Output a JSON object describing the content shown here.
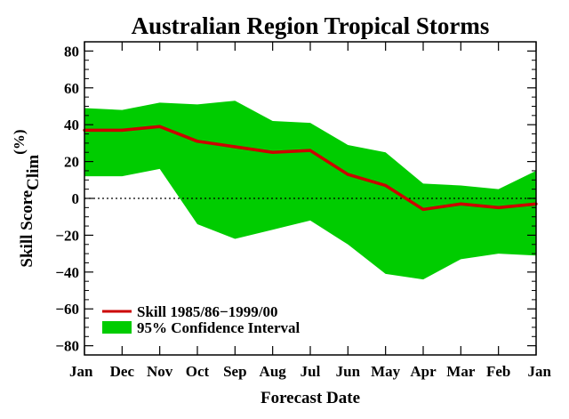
{
  "chart_data": {
    "type": "area",
    "title": "Australian Region Tropical Storms",
    "xlabel": "Forecast Date",
    "ylabel_main": "Skill Score",
    "ylabel_sub": "Clim",
    "ylabel_unit": "(%)",
    "categories": [
      "Jan",
      "Dec",
      "Nov",
      "Oct",
      "Sep",
      "Aug",
      "Jul",
      "Jun",
      "May",
      "Apr",
      "Mar",
      "Feb",
      "Jan"
    ],
    "yticks": [
      80,
      60,
      40,
      20,
      0,
      -20,
      -40,
      -60,
      -80
    ],
    "yticks_labels": [
      "80",
      "60",
      "40",
      "20",
      "0",
      "−20",
      "−40",
      "−60",
      "−80"
    ],
    "ylim": [
      -85,
      85
    ],
    "zero_line": "dotted",
    "grid": false,
    "legend_position": "bottom-left",
    "series": [
      {
        "name": "Skill 1985/86−1999/00",
        "kind": "line",
        "color": "#cc0000",
        "values": [
          37,
          37,
          39,
          31,
          28,
          25,
          26,
          13,
          7,
          -6,
          -3,
          -5,
          -3
        ]
      },
      {
        "name": "95% Confidence Interval",
        "kind": "band",
        "color": "#00cc00",
        "upper": [
          49,
          48,
          52,
          51,
          53,
          42,
          41,
          29,
          25,
          8,
          7,
          5,
          15
        ],
        "lower": [
          12,
          12,
          16,
          -14,
          -22,
          -17,
          -12,
          -25,
          -41,
          -44,
          -33,
          -30,
          -31
        ]
      }
    ]
  }
}
